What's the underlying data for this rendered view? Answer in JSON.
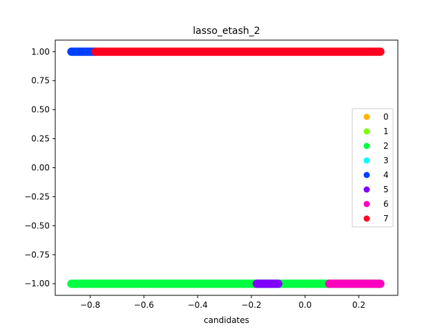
{
  "chart_data": {
    "type": "scatter",
    "title": "lasso_etash_2",
    "xlabel": "candidates",
    "ylabel": "",
    "xlim": [
      -0.93,
      0.345
    ],
    "ylim": [
      -1.1,
      1.1
    ],
    "x_ticks": [
      -0.8,
      -0.6,
      -0.4,
      -0.2,
      0.0,
      0.2
    ],
    "x_tick_labels": [
      "−0.8",
      "−0.6",
      "−0.4",
      "−0.2",
      "0.0",
      "0.2"
    ],
    "y_ticks": [
      -1.0,
      -0.75,
      -0.5,
      -0.25,
      0.0,
      0.25,
      0.5,
      0.75,
      1.0
    ],
    "y_tick_labels": [
      "−1.00",
      "−0.75",
      "−0.50",
      "−0.25",
      "0.00",
      "0.25",
      "0.50",
      "0.75",
      "1.00"
    ],
    "grid": false,
    "legend_position": "center-right",
    "series": [
      {
        "name": "0",
        "color": "#ffb300",
        "segments": []
      },
      {
        "name": "1",
        "color": "#80ff00",
        "segments": []
      },
      {
        "name": "2",
        "color": "#00ff40",
        "segments": [
          {
            "y": -1.0,
            "x_start": -0.87,
            "x_end": 0.28
          }
        ]
      },
      {
        "name": "3",
        "color": "#00ffff",
        "segments": []
      },
      {
        "name": "4",
        "color": "#0040ff",
        "segments": [
          {
            "y": 1.0,
            "x_start": -0.87,
            "x_end": -0.78
          }
        ]
      },
      {
        "name": "5",
        "color": "#8000ff",
        "segments": [
          {
            "y": -1.0,
            "x_start": -0.18,
            "x_end": -0.1
          }
        ]
      },
      {
        "name": "6",
        "color": "#ff00bf",
        "segments": [
          {
            "y": -1.0,
            "x_start": 0.09,
            "x_end": 0.28
          }
        ]
      },
      {
        "name": "7",
        "color": "#ff0020",
        "segments": [
          {
            "y": 1.0,
            "x_start": -0.78,
            "x_end": 0.28
          }
        ]
      }
    ]
  }
}
